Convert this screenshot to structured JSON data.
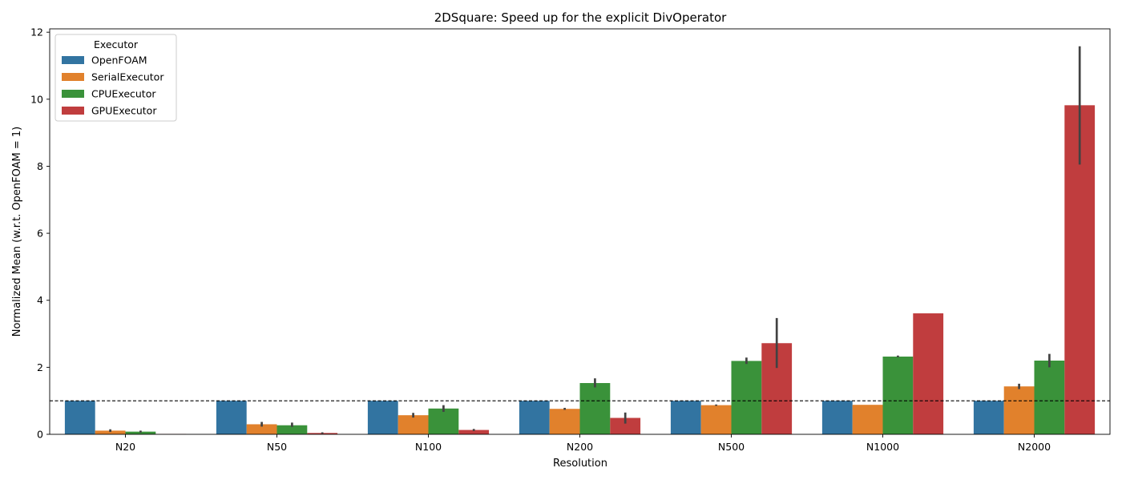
{
  "chart_data": {
    "type": "bar",
    "title": "2DSquare: Speed up for the explicit DivOperator",
    "xlabel": "Resolution",
    "ylabel": "Normalized Mean (w.r.t. OpenFOAM = 1)",
    "ylim": [
      0,
      12.1
    ],
    "yticks": [
      0,
      2,
      4,
      6,
      8,
      10,
      12
    ],
    "categories": [
      "N20",
      "N50",
      "N100",
      "N200",
      "N500",
      "N1000",
      "N2000"
    ],
    "reference_line": 1,
    "legend": {
      "title": "Executor",
      "placement": "top-left"
    },
    "grid": false,
    "series": [
      {
        "name": "OpenFOAM",
        "color": "#3274a1",
        "values": [
          1,
          1,
          1,
          1,
          1,
          1,
          1
        ],
        "err_low": [
          null,
          null,
          null,
          null,
          null,
          null,
          null
        ],
        "err_high": [
          null,
          null,
          null,
          null,
          null,
          null,
          null
        ]
      },
      {
        "name": "SerialExecutor",
        "color": "#e1812c",
        "values": [
          0.11,
          0.3,
          0.57,
          0.76,
          0.87,
          0.88,
          1.43
        ],
        "err_low": [
          0.07,
          0.23,
          0.5,
          0.73,
          0.85,
          null,
          1.35
        ],
        "err_high": [
          0.15,
          0.37,
          0.64,
          0.79,
          0.89,
          null,
          1.51
        ]
      },
      {
        "name": "CPUExecutor",
        "color": "#3a923a",
        "values": [
          0.08,
          0.27,
          0.77,
          1.53,
          2.19,
          2.32,
          2.2
        ],
        "err_low": [
          0.05,
          0.22,
          0.67,
          1.4,
          2.1,
          2.3,
          2.0
        ],
        "err_high": [
          0.11,
          0.35,
          0.87,
          1.67,
          2.29,
          2.35,
          2.4
        ]
      },
      {
        "name": "GPUExecutor",
        "color": "#c03d3e",
        "values": [
          0.01,
          0.04,
          0.13,
          0.49,
          2.72,
          3.61,
          9.82
        ],
        "err_low": [
          null,
          0.02,
          0.1,
          0.32,
          1.98,
          null,
          8.05
        ],
        "err_high": [
          null,
          0.06,
          0.16,
          0.65,
          3.47,
          null,
          11.58
        ]
      }
    ]
  }
}
